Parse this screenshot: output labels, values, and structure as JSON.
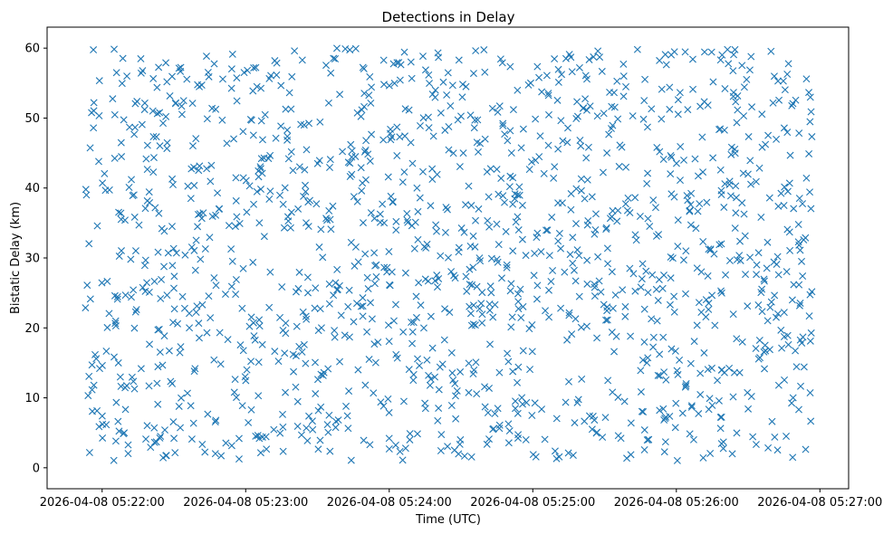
{
  "chart_data": {
    "type": "scatter",
    "title": "Detections in Delay",
    "xlabel": "Time (UTC)",
    "ylabel": "Bistatic Delay (km)",
    "marker": "x",
    "color": "#1f77b4",
    "grid": false,
    "legend": "none",
    "x_axis": {
      "type": "time",
      "start": "2026-04-08 05:21:53",
      "end": "2026-04-08 05:26:57",
      "lim": [
        "2026-04-08 05:21:37",
        "2026-04-08 05:27:12"
      ],
      "ticks": [
        "2026-04-08 05:22:00",
        "2026-04-08 05:23:00",
        "2026-04-08 05:24:00",
        "2026-04-08 05:25:00",
        "2026-04-08 05:26:00",
        "2026-04-08 05:27:00"
      ]
    },
    "y_axis": {
      "lim": [
        -3,
        63
      ],
      "ticks": [
        0,
        10,
        20,
        30,
        40,
        50,
        60
      ]
    },
    "point_count": 1500,
    "y_range": [
      1,
      60
    ],
    "distribution": "approximately uniform over time window and delay range"
  }
}
